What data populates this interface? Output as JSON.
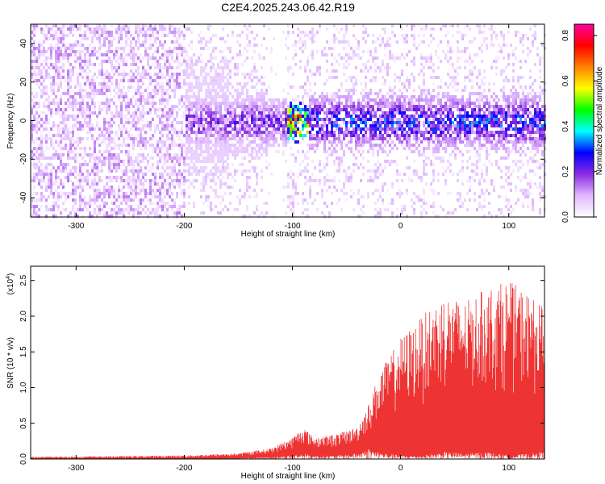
{
  "title": "C2E4.2025.243.06.42.R19",
  "chart_data": [
    {
      "type": "heatmap",
      "xlabel": "Height of straight line (km)",
      "ylabel": "Frequency (Hz)",
      "xlim": [
        -342,
        133
      ],
      "ylim": [
        -50,
        50
      ],
      "xticks": [
        -300,
        -200,
        -100,
        0,
        100
      ],
      "yticks": [
        -40,
        -20,
        0,
        20,
        40
      ],
      "colorbar": {
        "label": "Normalized spectral amplitude",
        "range": [
          0.0,
          0.85
        ],
        "ticks": [
          0.0,
          0.2,
          0.4,
          0.6,
          0.8
        ],
        "colors": [
          "#ffffff",
          "#e0b8ff",
          "#8a2be2",
          "#0000ff",
          "#00ffff",
          "#00ff00",
          "#ffff00",
          "#ff8000",
          "#ff0000",
          "#ff00a0"
        ]
      },
      "bands": [
        {
          "x_range": [
            -342,
            -200
          ],
          "f_range": [
            -50,
            50
          ],
          "amp": 0.08,
          "note_color": "#7a20e0"
        },
        {
          "x_range": [
            -200,
            -160
          ],
          "f_range": [
            -30,
            30
          ],
          "amp": 0.2
        },
        {
          "x_range": [
            -160,
            -105
          ],
          "f_range": [
            -18,
            18
          ],
          "amp": 0.22
        },
        {
          "x_range": [
            -105,
            -85
          ],
          "f_range": [
            -10,
            10
          ],
          "amp": 0.7
        },
        {
          "x_range": [
            -85,
            133
          ],
          "f_range": [
            -15,
            15
          ],
          "amp": 0.3
        }
      ]
    },
    {
      "type": "area",
      "xlabel": "Height of straight line (km)",
      "ylabel": "SNR (10 * v/v)",
      "yexponent_label": "(x10",
      "yexponent_power": "4",
      "yexponent_close": ")",
      "xlim": [
        -342,
        133
      ],
      "ylim": [
        0.0,
        2.7
      ],
      "xticks": [
        -300,
        -200,
        -100,
        0,
        100
      ],
      "yticks": [
        "0.0",
        "0.5",
        "1.0",
        "1.5",
        "2.0",
        "2.5"
      ],
      "ytick_values": [
        0.0,
        0.5,
        1.0,
        1.5,
        2.0,
        2.5
      ],
      "color": "#ee3333",
      "envelope_x": [
        -342,
        -200,
        -150,
        -120,
        -100,
        -90,
        -80,
        -60,
        -40,
        -30,
        -20,
        0,
        20,
        40,
        60,
        80,
        100,
        120,
        133
      ],
      "envelope_max": [
        0.03,
        0.05,
        0.08,
        0.15,
        0.3,
        0.45,
        0.3,
        0.35,
        0.45,
        0.75,
        1.2,
        1.7,
        2.0,
        2.3,
        2.2,
        2.4,
        2.5,
        2.3,
        2.1
      ],
      "envelope_min": [
        0.0,
        0.0,
        0.01,
        0.03,
        0.05,
        0.08,
        0.05,
        0.05,
        0.08,
        0.15,
        0.1,
        0.05,
        0.05,
        0.1,
        0.08,
        0.1,
        0.05,
        0.08,
        0.1
      ]
    }
  ]
}
